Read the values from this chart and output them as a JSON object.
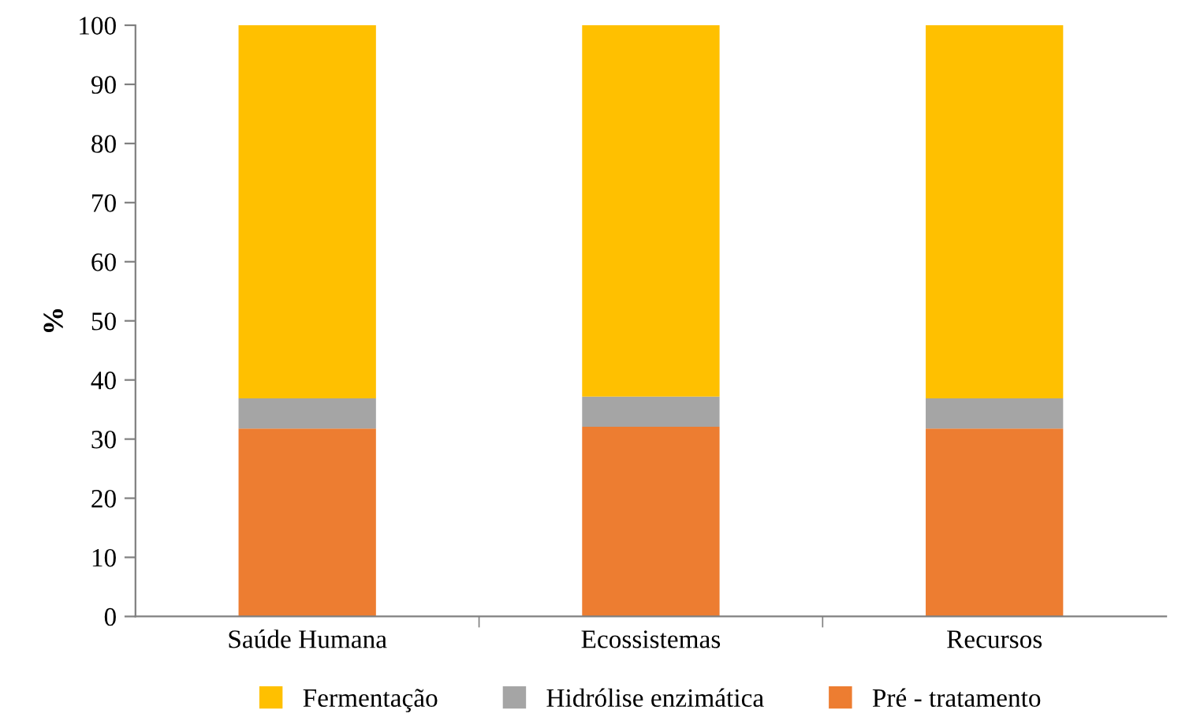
{
  "chart_data": {
    "type": "bar",
    "stacked": true,
    "ylabel": "%",
    "categories": [
      "Saúde Humana",
      "Ecossistemas",
      "Recursos"
    ],
    "series": [
      {
        "name": "Pré - tratamento",
        "color": "#ed7d31",
        "values": [
          31.8,
          32.1,
          31.8
        ]
      },
      {
        "name": "Hidrólise enzimática",
        "color": "#a5a5a5",
        "values": [
          5.1,
          5.1,
          5.1
        ]
      },
      {
        "name": "Fermentação",
        "color": "#ffc000",
        "values": [
          63.1,
          62.8,
          63.1
        ]
      }
    ],
    "ylim": [
      0,
      100
    ],
    "yticks": [
      0,
      10,
      20,
      30,
      40,
      50,
      60,
      70,
      80,
      90,
      100
    ],
    "grid": false,
    "legend": "bottom"
  }
}
